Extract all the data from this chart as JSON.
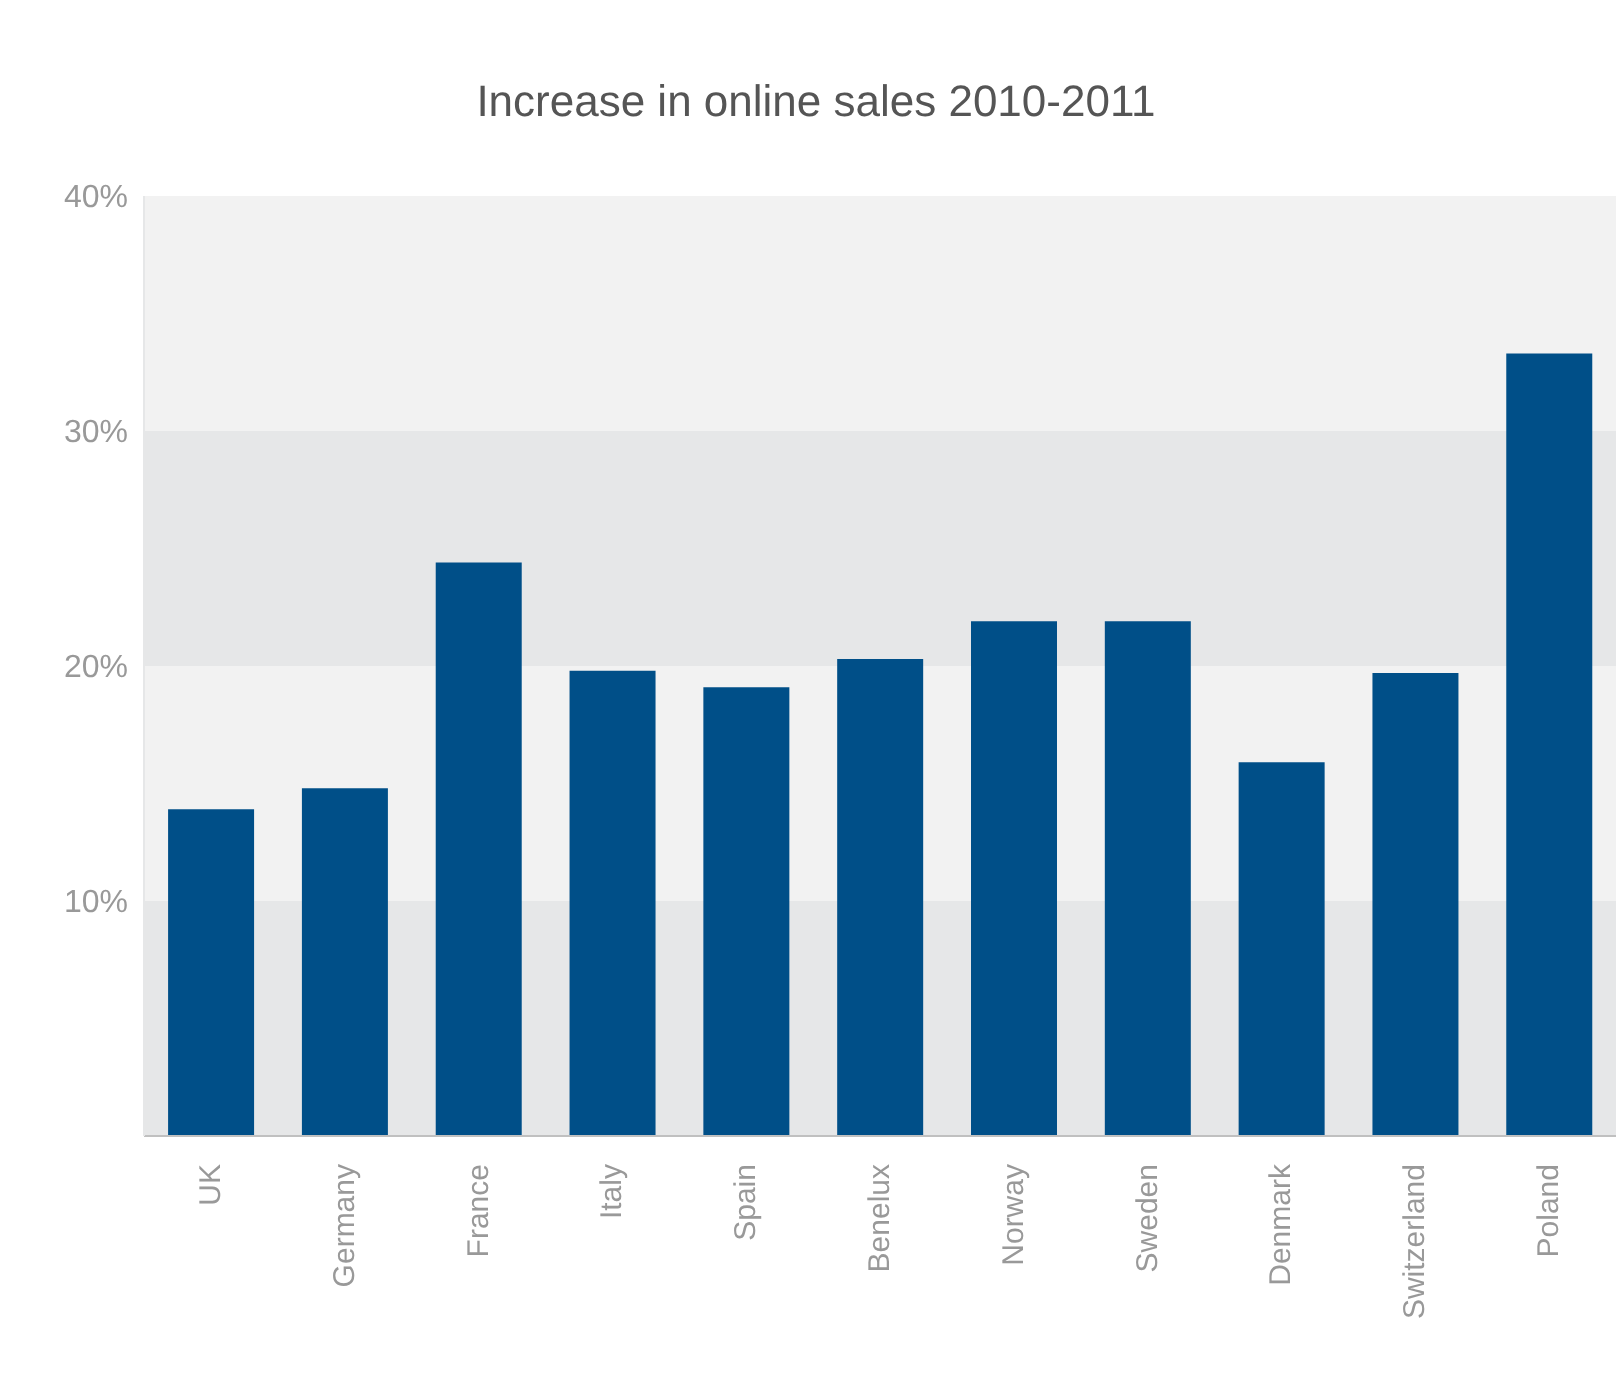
{
  "chart_data": {
    "type": "bar",
    "title": "Increase in online sales 2010-2011",
    "categories": [
      "UK",
      "Germany",
      "France",
      "Italy",
      "Spain",
      "Benelux",
      "Norway",
      "Sweden",
      "Denmark",
      "Switzerland",
      "Poland"
    ],
    "values": [
      13.9,
      14.8,
      24.4,
      19.8,
      19.1,
      20.3,
      21.9,
      21.9,
      15.9,
      19.7,
      33.3
    ],
    "color": "#004f88",
    "ylim": [
      0,
      40
    ],
    "yticks": [
      {
        "value": 10,
        "label": "10%"
      },
      {
        "value": 20,
        "label": "20%"
      },
      {
        "value": 30,
        "label": "30%"
      },
      {
        "value": 40,
        "label": "40%"
      }
    ],
    "bands": [
      {
        "axis": "y",
        "from": 0,
        "to": 10,
        "color": "#e6e7e8"
      },
      {
        "axis": "y",
        "from": 10,
        "to": 20,
        "color": "#f2f2f2"
      },
      {
        "axis": "y",
        "from": 20,
        "to": 30,
        "color": "#e6e7e8"
      },
      {
        "axis": "y",
        "from": 30,
        "to": 40,
        "color": "#f2f2f2"
      }
    ]
  }
}
